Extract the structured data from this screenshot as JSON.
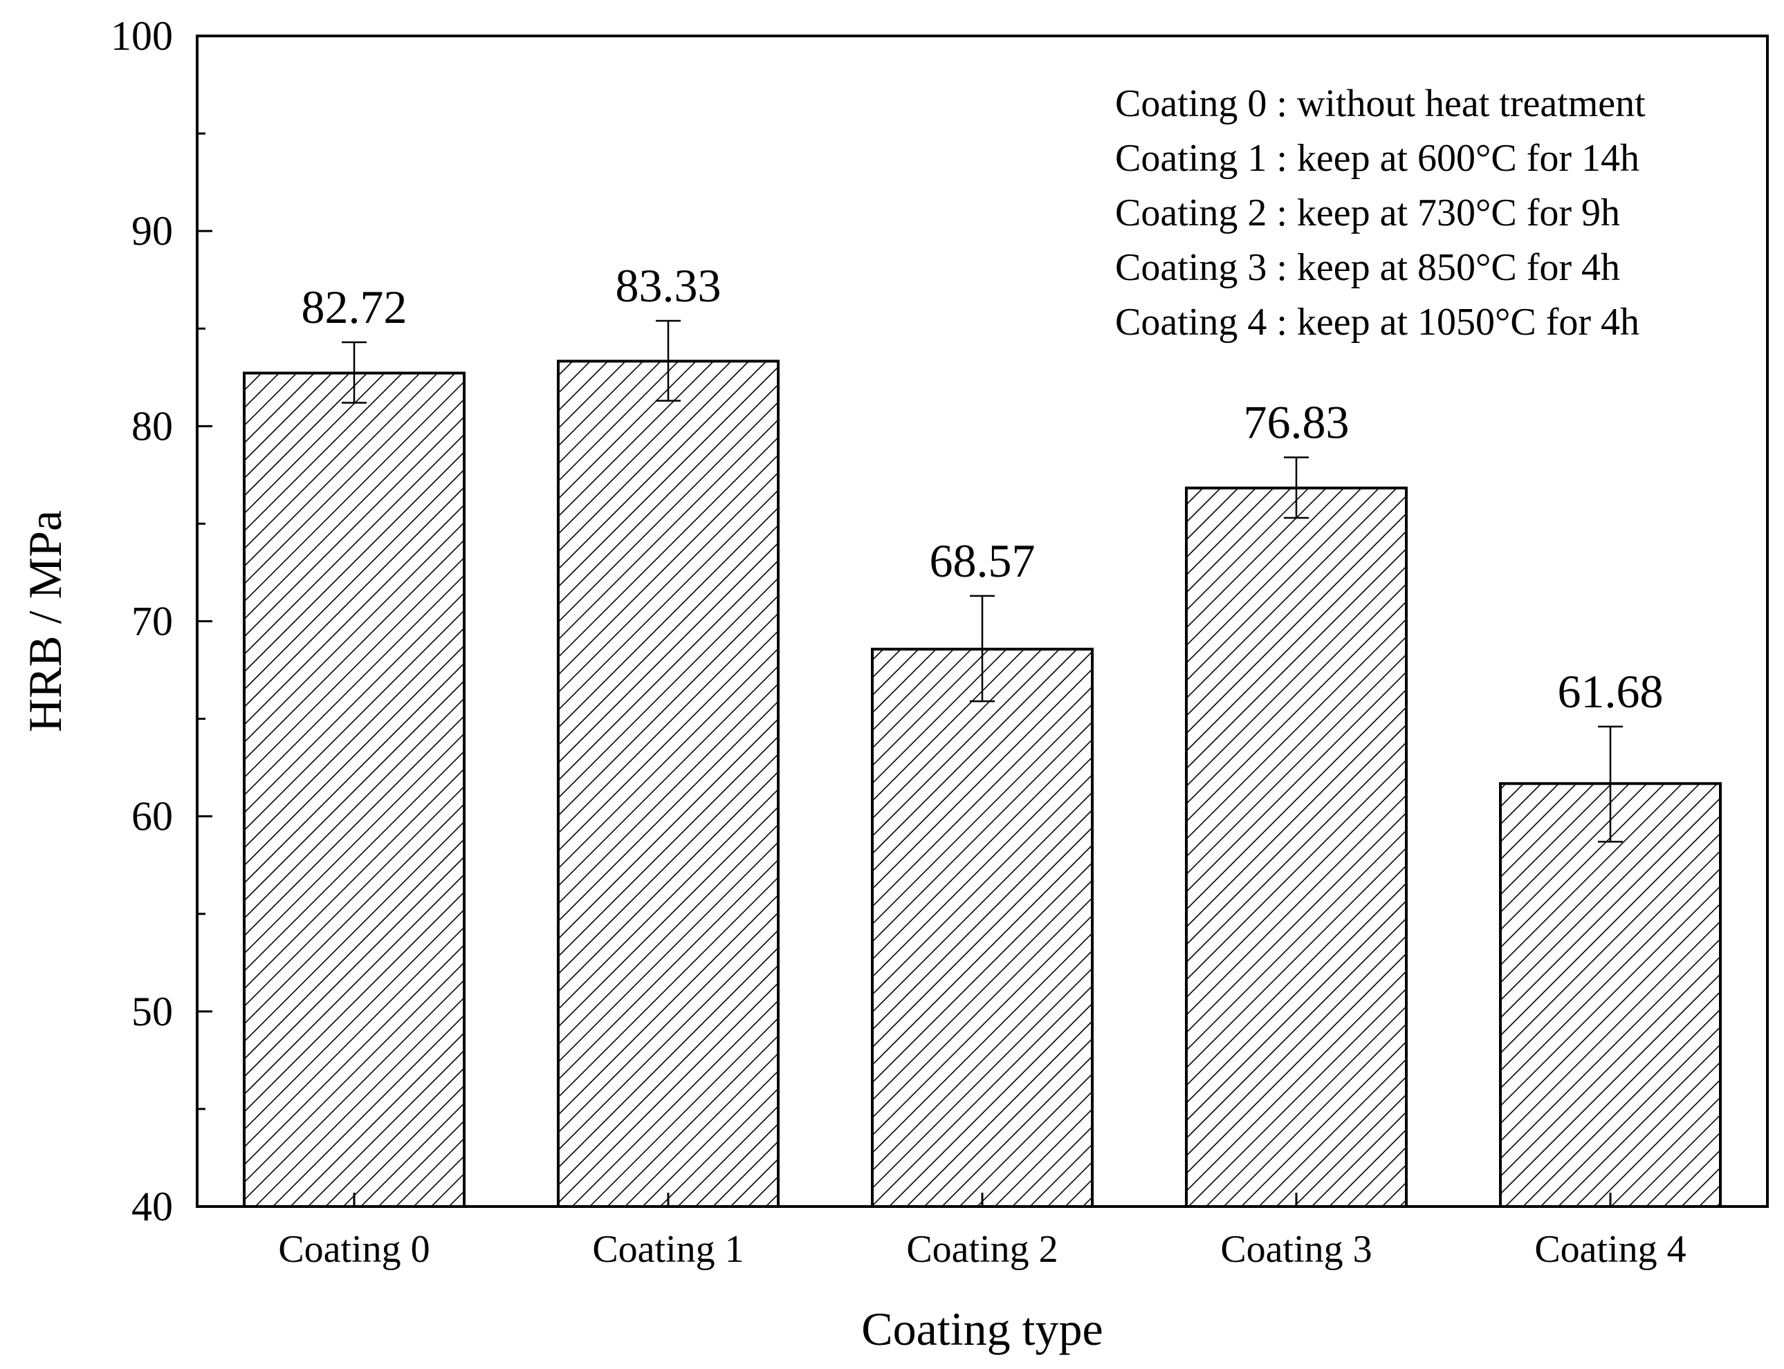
{
  "chart_data": {
    "type": "bar",
    "title": "",
    "xlabel": "Coating type",
    "ylabel": "HRB / MPa",
    "ylim": [
      40,
      100
    ],
    "yticks": [
      "40",
      "50",
      "60",
      "70",
      "80",
      "90",
      "100"
    ],
    "grid": false,
    "bar_fill": "hatched",
    "categories": [
      "Coating 0",
      "Coating 1",
      "Coating 2",
      "Coating 3",
      "Coating 4"
    ],
    "values": [
      82.72,
      83.33,
      68.57,
      76.83,
      61.68
    ],
    "value_labels": [
      "82.72",
      "83.33",
      "68.57",
      "76.83",
      "61.68"
    ],
    "error_bars": [
      {
        "low": 81.2,
        "high": 84.3
      },
      {
        "low": 81.3,
        "high": 85.4
      },
      {
        "low": 65.9,
        "high": 71.3
      },
      {
        "low": 75.3,
        "high": 78.4
      },
      {
        "low": 58.7,
        "high": 64.6
      }
    ],
    "legend": {
      "placement": "top-right",
      "entries": [
        "Coating 0 : without heat treatment",
        "Coating 1 : keep at 600°C for 14h",
        "Coating 2 : keep at 730°C for 9h",
        "Coating 3 : keep at 850°C for 4h",
        "Coating 4 : keep at 1050°C for 4h"
      ]
    }
  },
  "colors": {
    "axis": "#000000",
    "bar_stroke": "#000000",
    "hatch": "#000000",
    "background": "#ffffff"
  }
}
